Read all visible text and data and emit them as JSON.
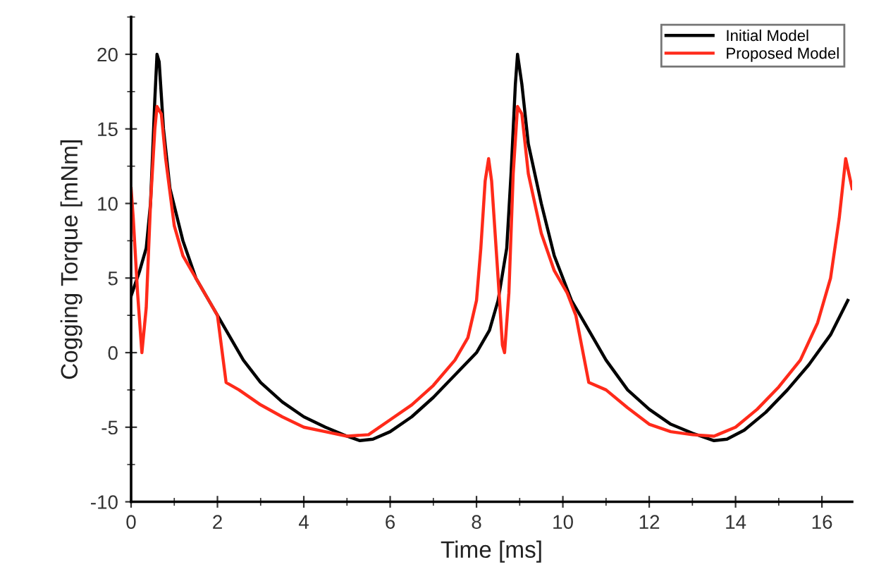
{
  "chart_data": {
    "type": "line",
    "xlabel": "Time [ms]",
    "ylabel": "Cogging Torque [mNm]",
    "xlim": [
      0,
      16.7
    ],
    "ylim": [
      -10,
      22.5
    ],
    "xticks": [
      0,
      2,
      4,
      6,
      8,
      10,
      12,
      14,
      16
    ],
    "yticks": [
      -10,
      -5,
      0,
      5,
      10,
      15,
      20
    ],
    "grid": false,
    "legend": "top right",
    "marker": "none",
    "line_style": "solid",
    "series": [
      {
        "name": "Initial Model",
        "color": "#000000",
        "x": [
          0,
          0.2,
          0.35,
          0.45,
          0.55,
          0.6,
          0.65,
          0.75,
          0.9,
          1.2,
          1.5,
          1.8,
          2.0,
          2.3,
          2.6,
          3,
          3.5,
          4,
          4.5,
          5,
          5.3,
          5.6,
          6,
          6.5,
          7,
          7.5,
          8,
          8.3,
          8.5,
          8.7,
          8.8,
          8.9,
          8.95,
          9.05,
          9.2,
          9.5,
          9.8,
          10.2,
          10.5,
          11,
          11.5,
          12,
          12.5,
          13,
          13.5,
          13.8,
          14.2,
          14.7,
          15.2,
          15.7,
          16.2,
          16.6
        ],
        "values": [
          3.8,
          5.5,
          7,
          10,
          17,
          20,
          19.5,
          15,
          11,
          7.5,
          5,
          3.5,
          2.5,
          1,
          -0.5,
          -2,
          -3.3,
          -4.3,
          -5,
          -5.6,
          -5.9,
          -5.8,
          -5.3,
          -4.3,
          -3,
          -1.5,
          0,
          1.5,
          3.5,
          7,
          12,
          18,
          20,
          18,
          14,
          10,
          6.5,
          3.5,
          2,
          -0.5,
          -2.5,
          -3.8,
          -4.8,
          -5.4,
          -5.9,
          -5.8,
          -5.2,
          -4,
          -2.5,
          -0.8,
          1.2,
          3.5
        ]
      },
      {
        "name": "Proposed Model",
        "color": "#ff2a1a",
        "x": [
          0,
          0.05,
          0.15,
          0.25,
          0.35,
          0.45,
          0.55,
          0.6,
          0.7,
          0.8,
          1,
          1.2,
          1.5,
          1.8,
          2.0,
          2.2,
          2.5,
          3,
          3.5,
          4,
          4.5,
          5,
          5.5,
          6,
          6.5,
          7,
          7.5,
          7.8,
          8.0,
          8.1,
          8.2,
          8.28,
          8.35,
          8.5,
          8.6,
          8.65,
          8.75,
          8.85,
          8.95,
          9.05,
          9.2,
          9.5,
          9.8,
          10.1,
          10.3,
          10.6,
          11,
          11.5,
          12,
          12.5,
          13,
          13.5,
          14,
          14.5,
          15,
          15.5,
          15.9,
          16.2,
          16.4,
          16.55,
          16.7
        ],
        "values": [
          11,
          9,
          4,
          0,
          3,
          10,
          15,
          16.5,
          16,
          13,
          8.5,
          6.5,
          5,
          3.5,
          2.5,
          -2,
          -2.5,
          -3.5,
          -4.3,
          -5,
          -5.3,
          -5.6,
          -5.5,
          -4.5,
          -3.5,
          -2.2,
          -0.5,
          1,
          3.5,
          7,
          11.5,
          13,
          11.5,
          5,
          0.5,
          0,
          4,
          12,
          16.5,
          16,
          12,
          8,
          5.5,
          4,
          2.5,
          -2,
          -2.5,
          -3.7,
          -4.8,
          -5.3,
          -5.5,
          -5.6,
          -5,
          -3.8,
          -2.3,
          -0.5,
          2,
          5,
          9,
          13,
          11
        ]
      }
    ]
  }
}
